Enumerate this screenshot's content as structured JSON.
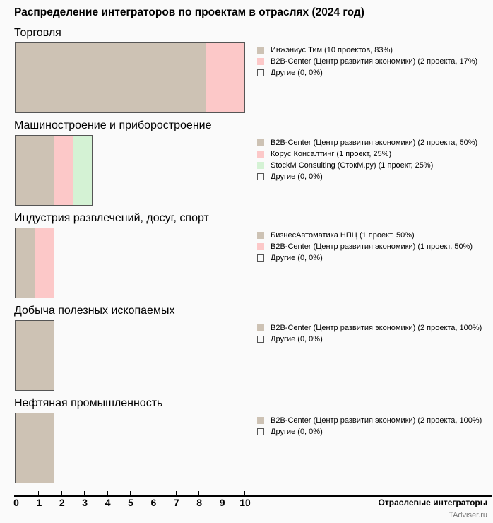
{
  "colors": {
    "beige": "#cdc2b4",
    "pink": "#fcc8c8",
    "green": "#d4f2d4",
    "other": "#fafafa"
  },
  "chart_data": {
    "type": "bar",
    "title": "Распределение интеграторов по проектам в отраслях (2024 год)",
    "xlabel": "Отраслевые интеграторы",
    "xticks": [
      "0",
      "1",
      "2",
      "3",
      "4",
      "5",
      "6",
      "7",
      "8",
      "9",
      "10"
    ],
    "credit": "TAdviser.ru",
    "sections": [
      {
        "name": "Торговля",
        "items": [
          {
            "label": "Инжэниус Тим (10 проектов, 83%)",
            "value": 10,
            "color": "beige"
          },
          {
            "label": "B2B-Center (Центр развития экономики) (2 проекта, 17%)",
            "value": 2,
            "color": "pink"
          },
          {
            "label": "Другие (0, 0%)",
            "value": 0,
            "color": "other"
          }
        ]
      },
      {
        "name": "Машиностроение и приборостроение",
        "items": [
          {
            "label": "B2B-Center (Центр развития экономики) (2 проекта, 50%)",
            "value": 2,
            "color": "beige"
          },
          {
            "label": "Корус Консалтинг (1 проект, 25%)",
            "value": 1,
            "color": "pink"
          },
          {
            "label": "StockM Consulting (СтокМ.ру) (1 проект, 25%)",
            "value": 1,
            "color": "green"
          },
          {
            "label": "Другие (0, 0%)",
            "value": 0,
            "color": "other"
          }
        ]
      },
      {
        "name": "Индустрия развлечений, досуг, спорт",
        "items": [
          {
            "label": "БизнесАвтоматика НПЦ (1 проект, 50%)",
            "value": 1,
            "color": "beige"
          },
          {
            "label": "B2B-Center (Центр развития экономики) (1 проект, 50%)",
            "value": 1,
            "color": "pink"
          },
          {
            "label": "Другие (0, 0%)",
            "value": 0,
            "color": "other"
          }
        ]
      },
      {
        "name": "Добыча полезных ископаемых",
        "items": [
          {
            "label": "B2B-Center (Центр развития экономики) (2 проекта, 100%)",
            "value": 2,
            "color": "beige"
          },
          {
            "label": "Другие (0, 0%)",
            "value": 0,
            "color": "other"
          }
        ]
      },
      {
        "name": "Нефтяная промышленность",
        "items": [
          {
            "label": "B2B-Center (Центр развития экономики) (2 проекта, 100%)",
            "value": 2,
            "color": "beige"
          },
          {
            "label": "Другие (0, 0%)",
            "value": 0,
            "color": "other"
          }
        ]
      }
    ]
  }
}
